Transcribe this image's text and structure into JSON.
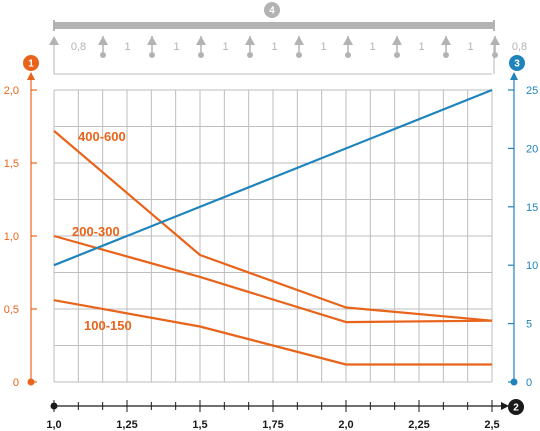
{
  "chart_data": {
    "type": "line",
    "x": [
      1.0,
      1.25,
      1.5,
      1.75,
      2.0,
      2.25,
      2.5
    ],
    "x_tick_labels": [
      "1,0",
      "1,25",
      "1,5",
      "1,75",
      "2,0",
      "2,25",
      "2,5"
    ],
    "xlim": [
      1.0,
      2.5
    ],
    "ylim": [
      0,
      2.0
    ],
    "y_left_tick_labels": [
      "0",
      "0,5",
      "1,0",
      "1,5",
      "2,0"
    ],
    "y_left_ticks": [
      0,
      0.5,
      1.0,
      1.5,
      2.0
    ],
    "ylim_right": [
      0,
      25
    ],
    "y_right_tick_labels": [
      "0",
      "5",
      "10",
      "15",
      "20",
      "25"
    ],
    "y_right_ticks": [
      0,
      5,
      10,
      15,
      20,
      25
    ],
    "grid": true,
    "series": [
      {
        "name": "400-600",
        "axis": "left",
        "color": "#e8641b",
        "points": [
          [
            1.0,
            1.72
          ],
          [
            1.5,
            0.87
          ],
          [
            2.0,
            0.51
          ],
          [
            2.5,
            0.42
          ]
        ]
      },
      {
        "name": "200-300",
        "axis": "left",
        "color": "#e8641b",
        "points": [
          [
            1.0,
            1.0
          ],
          [
            1.5,
            0.72
          ],
          [
            2.0,
            0.41
          ],
          [
            2.5,
            0.42
          ]
        ]
      },
      {
        "name": "100-150",
        "axis": "left",
        "color": "#e8641b",
        "points": [
          [
            1.0,
            0.56
          ],
          [
            1.5,
            0.38
          ],
          [
            2.0,
            0.12
          ],
          [
            2.5,
            0.12
          ]
        ]
      },
      {
        "name": "",
        "axis": "right",
        "color": "#1f84bd",
        "points": [
          [
            1.0,
            10
          ],
          [
            2.5,
            25
          ]
        ]
      }
    ],
    "badges": {
      "left_axis": "1",
      "x_axis": "2",
      "right_axis": "3",
      "support_span": "4"
    },
    "span_labels": [
      "0,8",
      "1",
      "1",
      "1",
      "1",
      "1",
      "1",
      "1",
      "1",
      "0,8"
    ],
    "colors": {
      "orange": "#e8641b",
      "blue": "#1f84bd",
      "grid": "#bdbdbd",
      "support": "#b3b3b3",
      "black": "#1a1a1a"
    }
  }
}
